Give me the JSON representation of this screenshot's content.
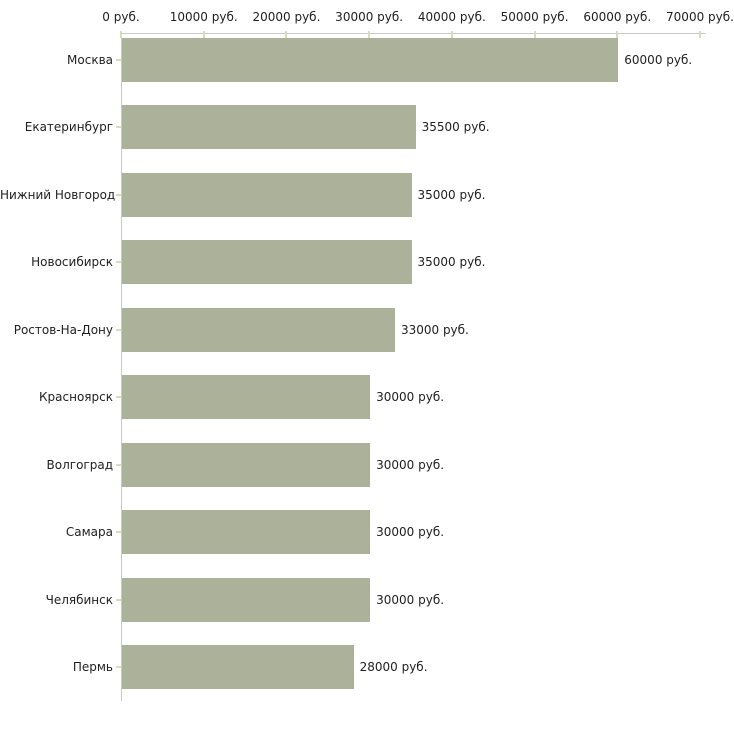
{
  "chart_data": {
    "type": "bar",
    "orientation": "horizontal",
    "title": "",
    "xlabel": "",
    "ylabel": "",
    "xlim": [
      0,
      70000
    ],
    "grid": false,
    "legend": false,
    "unit_suffix": " руб.",
    "categories": [
      "Москва",
      "Екатеринбург",
      "Нижний Новгород",
      "Новосибирск",
      "Ростов-На-Дону",
      "Красноярск",
      "Волгоград",
      "Самара",
      "Челябинск",
      "Пермь"
    ],
    "values": [
      60000,
      35500,
      35000,
      35000,
      33000,
      30000,
      30000,
      30000,
      30000,
      28000
    ],
    "value_labels": [
      "60000 руб.",
      "35500 руб.",
      "35000 руб.",
      "35000 руб.",
      "33000 руб.",
      "30000 руб.",
      "30000 руб.",
      "30000 руб.",
      "30000 руб.",
      "28000 руб."
    ],
    "x_ticks": [
      0,
      10000,
      20000,
      30000,
      40000,
      50000,
      60000,
      70000
    ],
    "x_tick_labels": [
      "0 руб.",
      "10000 руб.",
      "20000 руб.",
      "30000 руб.",
      "40000 руб.",
      "50000 руб.",
      "60000 руб.",
      "70000 руб."
    ],
    "colors": {
      "bar": "#acb19a",
      "axis": "#c9c9c9",
      "tick": "#d8dcba",
      "text": "#1f1f1f",
      "background": "#ffffff"
    }
  }
}
